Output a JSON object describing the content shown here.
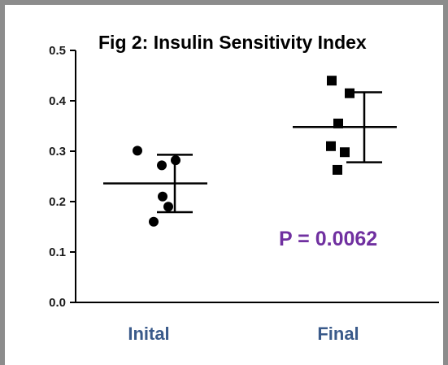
{
  "chart_data": {
    "type": "scatter",
    "title": "Fig 2: Insulin Sensitivity Index",
    "annotation": "P = 0.0062",
    "categories": [
      "Inital",
      "Final"
    ],
    "ylim": [
      0.0,
      0.5
    ],
    "yticks": [
      0.0,
      0.1,
      0.2,
      0.3,
      0.4,
      0.5
    ],
    "ytick_labels": [
      "0.0",
      "0.1",
      "0.2",
      "0.3",
      "0.4",
      "0.5"
    ],
    "grid": false,
    "series": [
      {
        "category": "Inital",
        "marker": "circle",
        "points": [
          0.301,
          0.272,
          0.282,
          0.21,
          0.19,
          0.16
        ],
        "mean": 0.236,
        "error_upper": 0.293,
        "error_lower": 0.179
      },
      {
        "category": "Final",
        "marker": "square",
        "points": [
          0.44,
          0.415,
          0.355,
          0.31,
          0.298,
          0.263
        ],
        "mean": 0.348,
        "error_upper": 0.417,
        "error_lower": 0.278
      }
    ],
    "colors": {
      "points": "#000000",
      "category_label": "#3a5a8a",
      "annotation": "#7030a0"
    }
  }
}
